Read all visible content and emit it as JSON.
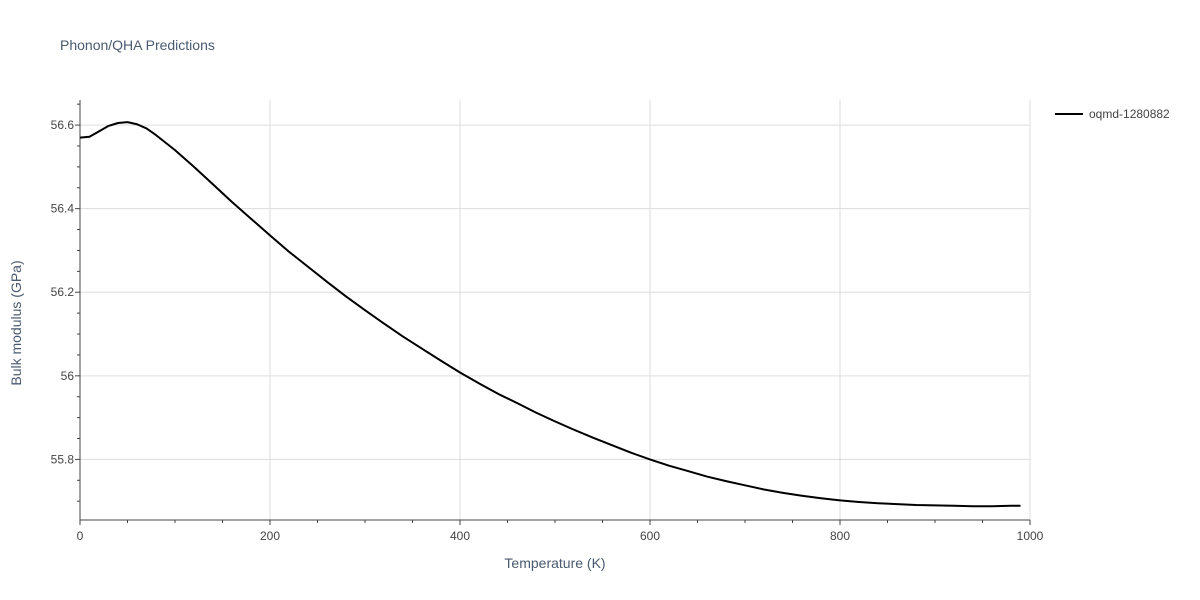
{
  "chart_data": {
    "type": "line",
    "title": "Phonon/QHA Predictions",
    "xlabel": "Temperature (K)",
    "ylabel": "Bulk modulus (GPa)",
    "xlim": [
      0,
      1000
    ],
    "ylim": [
      55.655,
      56.66
    ],
    "x_ticks": [
      0,
      200,
      400,
      600,
      800,
      1000
    ],
    "x_tick_labels": [
      "0",
      "200",
      "400",
      "600",
      "800",
      "1000"
    ],
    "y_ticks": [
      55.8,
      56.0,
      56.2,
      56.4,
      56.6
    ],
    "y_tick_labels": [
      "55.8",
      "56",
      "56.2",
      "56.4",
      "56.6"
    ],
    "grid": true,
    "legend_position": "top-right",
    "series": [
      {
        "name": "oqmd-1280882",
        "color": "#000000",
        "x": [
          0,
          10,
          20,
          30,
          40,
          50,
          60,
          70,
          80,
          90,
          100,
          120,
          140,
          160,
          180,
          200,
          220,
          240,
          260,
          280,
          300,
          320,
          340,
          360,
          380,
          400,
          420,
          440,
          460,
          480,
          500,
          520,
          540,
          560,
          580,
          600,
          620,
          640,
          660,
          680,
          700,
          720,
          740,
          760,
          780,
          800,
          820,
          840,
          860,
          880,
          900,
          920,
          940,
          960,
          980,
          990
        ],
        "y": [
          56.57,
          56.572,
          56.585,
          56.598,
          56.605,
          56.607,
          56.602,
          56.592,
          56.576,
          56.558,
          56.54,
          56.5,
          56.458,
          56.416,
          56.376,
          56.336,
          56.297,
          56.261,
          56.225,
          56.19,
          56.157,
          56.125,
          56.094,
          56.065,
          56.036,
          56.008,
          55.982,
          55.957,
          55.935,
          55.912,
          55.891,
          55.871,
          55.852,
          55.834,
          55.816,
          55.8,
          55.785,
          55.772,
          55.759,
          55.748,
          55.738,
          55.728,
          55.72,
          55.713,
          55.707,
          55.702,
          55.698,
          55.695,
          55.693,
          55.691,
          55.69,
          55.689,
          55.688,
          55.688,
          55.689,
          55.689
        ]
      }
    ]
  }
}
